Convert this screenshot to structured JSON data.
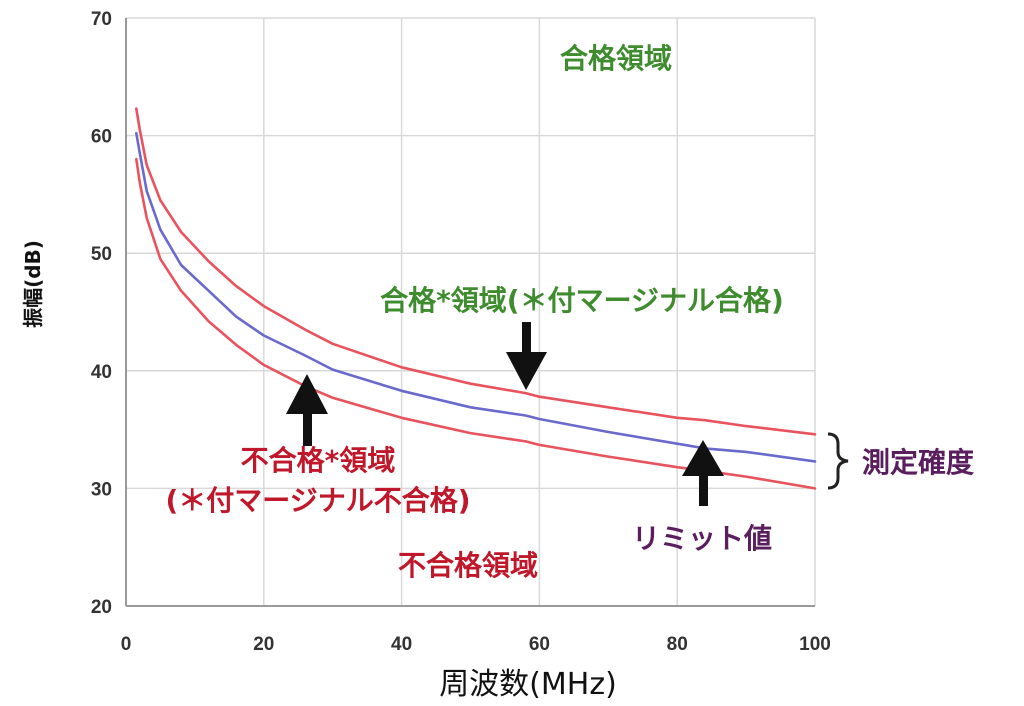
{
  "colors": {
    "green": "#3e8c2e",
    "red": "#c0182a",
    "purple": "#5a1d5e",
    "limit_line": "#6a6acd",
    "margin_line": "#e8535e",
    "grid": "#d9d9d9",
    "axis": "#9a9a9a"
  },
  "chart_data": {
    "type": "line",
    "xlabel": "周波数(MHz)",
    "ylabel": "振幅(dB)",
    "xlim": [
      0,
      100
    ],
    "ylim": [
      20,
      70
    ],
    "xticks": [
      0,
      20,
      40,
      60,
      80,
      100
    ],
    "yticks": [
      20,
      30,
      40,
      50,
      60,
      70
    ],
    "grid": true,
    "series": [
      {
        "name": "",
        "role": "upper",
        "color": "#e8535e",
        "x": [
          1.5,
          2,
          3,
          5,
          8,
          12,
          16,
          20,
          26,
          30,
          40,
          50,
          58,
          60,
          70,
          80,
          84,
          90,
          100
        ],
        "y": [
          62.3,
          60.5,
          57.5,
          54.5,
          51.8,
          49.3,
          47.2,
          45.5,
          43.5,
          42.3,
          40.3,
          38.9,
          38.1,
          37.8,
          36.9,
          36.0,
          35.8,
          35.3,
          34.6
        ]
      },
      {
        "name": "リミット値",
        "role": "limit",
        "color": "#6a6acd",
        "x": [
          1.5,
          2,
          3,
          5,
          8,
          12,
          16,
          20,
          26,
          30,
          40,
          50,
          58,
          60,
          70,
          80,
          84,
          90,
          100
        ],
        "y": [
          60.2,
          58.5,
          55.3,
          52.0,
          49.0,
          46.8,
          44.6,
          43.0,
          41.3,
          40.1,
          38.3,
          36.9,
          36.2,
          35.9,
          34.8,
          33.8,
          33.4,
          33.1,
          32.3
        ]
      },
      {
        "name": "",
        "role": "lower",
        "color": "#e8535e",
        "x": [
          1.5,
          2,
          3,
          5,
          8,
          12,
          16,
          20,
          26,
          30,
          40,
          50,
          58,
          60,
          70,
          80,
          84,
          90,
          100
        ],
        "y": [
          58.0,
          56.0,
          53.0,
          49.5,
          46.8,
          44.2,
          42.2,
          40.5,
          38.7,
          37.7,
          36.0,
          34.7,
          34.0,
          33.7,
          32.7,
          31.8,
          31.5,
          31.0,
          30.0
        ]
      }
    ],
    "annotations": [
      {
        "text": "合格領域",
        "color": "green"
      },
      {
        "text": "合格*領域(＊付マージナル合格)",
        "color": "green"
      },
      {
        "text": "不合格*領域",
        "color": "red"
      },
      {
        "text": "(＊付マージナル不合格)",
        "color": "red"
      },
      {
        "text": "不合格領域",
        "color": "red"
      },
      {
        "text": "リミット値",
        "color": "purple"
      },
      {
        "text": "測定確度",
        "color": "purple"
      }
    ]
  }
}
